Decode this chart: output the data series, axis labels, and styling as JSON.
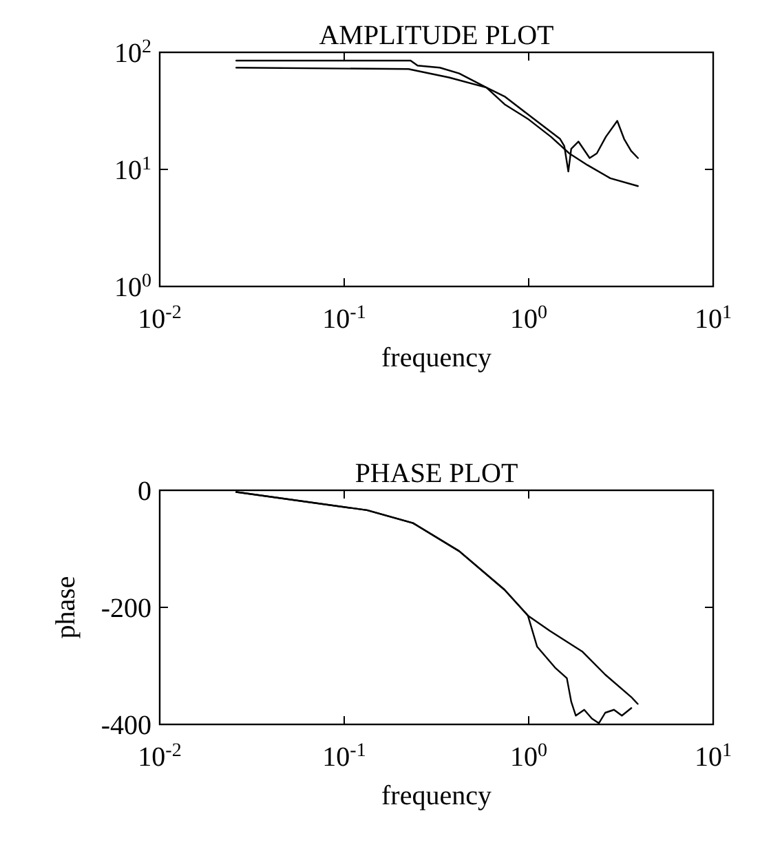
{
  "chart_data": [
    {
      "type": "line",
      "title": "AMPLITUDE PLOT",
      "xlabel": "frequency",
      "log": "xy",
      "xlim": [
        0.01,
        10
      ],
      "ylim": [
        1,
        100
      ],
      "xticks": [
        {
          "value": 0.01,
          "label": "10$^{-2}$"
        },
        {
          "value": 0.1,
          "label": "10$^{-1}$"
        },
        {
          "value": 1,
          "label": "10$^{0}$"
        },
        {
          "value": 10,
          "label": "10$^{1}$"
        }
      ],
      "yticks": [
        {
          "value": 1,
          "label": "10$^{0}$"
        },
        {
          "value": 10,
          "label": "10$^{1}$"
        },
        {
          "value": 100,
          "label": "10$^{2}$"
        }
      ],
      "grid": false,
      "marker": "none",
      "line_style": "solid",
      "series": [
        {
          "color": "#000000",
          "x": [
            0.026,
            0.229,
            0.25,
            0.33,
            0.42,
            0.59,
            0.74,
            0.99,
            1.32,
            1.66,
            2.08,
            2.77,
            3.91
          ],
          "values": [
            85,
            85,
            77,
            74,
            66,
            50,
            36,
            27,
            19,
            13.7,
            10.9,
            8.4,
            7.2
          ]
        },
        {
          "color": "#000000",
          "x": [
            0.026,
            0.223,
            0.37,
            0.59,
            0.74,
            1.05,
            1.48,
            1.56,
            1.64,
            1.7,
            1.86,
            2.14,
            2.34,
            2.62,
            3.02,
            3.29,
            3.59,
            3.91
          ],
          "values": [
            74,
            72,
            61,
            50,
            42,
            27.5,
            18.2,
            15.8,
            9.6,
            15,
            17.3,
            12.5,
            13.7,
            19,
            26,
            18.2,
            14.4,
            12.5
          ]
        }
      ]
    },
    {
      "type": "line",
      "title": "PHASE PLOT",
      "xlabel": "frequency",
      "ylabel": "phase",
      "log": "x",
      "xlim": [
        0.01,
        10
      ],
      "ylim": [
        -400,
        0
      ],
      "xticks": [
        {
          "value": 0.01,
          "label": "10$^{-2}$"
        },
        {
          "value": 0.1,
          "label": "10$^{-1}$"
        },
        {
          "value": 1,
          "label": "10$^{0}$"
        },
        {
          "value": 10,
          "label": "10$^{1}$"
        }
      ],
      "yticks": [
        -400,
        -200,
        0
      ],
      "grid": false,
      "marker": "none",
      "line_style": "solid",
      "series": [
        {
          "color": "#000000",
          "x": [
            0.026,
            0.133,
            0.236,
            0.42,
            0.74,
            0.99,
            1.3,
            1.96,
            2.6,
            3.59,
            3.9
          ],
          "values": [
            -3,
            -34,
            -56,
            -104,
            -170,
            -214,
            -240,
            -276,
            -315,
            -353,
            -365
          ]
        },
        {
          "color": "#000000",
          "x": [
            0.026,
            0.133,
            0.236,
            0.42,
            0.74,
            0.99,
            1.11,
            1.39,
            1.61,
            1.7,
            1.8,
            2.0,
            2.2,
            2.4,
            2.6,
            2.9,
            3.2,
            3.6
          ],
          "values": [
            -3,
            -34,
            -56,
            -104,
            -170,
            -214,
            -267,
            -303,
            -321,
            -361,
            -385,
            -375,
            -390,
            -398,
            -380,
            -375,
            -385,
            -372
          ]
        }
      ]
    }
  ]
}
